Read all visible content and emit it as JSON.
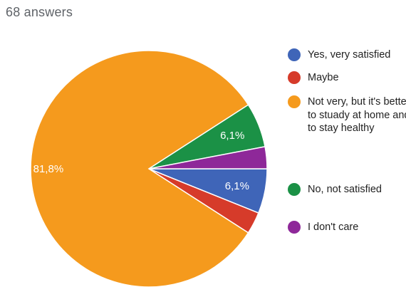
{
  "response_count": "68 answers",
  "chart_data": {
    "type": "pie",
    "slices": [
      {
        "label": "Yes, very satisfied",
        "value": 6.1,
        "display": "6,1%",
        "color": "#3f65b8"
      },
      {
        "label": "Maybe",
        "value": 3.0,
        "display": "",
        "color": "#d63b2a"
      },
      {
        "label": "Not very, but it's better to stuady at home and to stay healthy",
        "value": 81.8,
        "display": "81,8%",
        "color": "#f59a1d"
      },
      {
        "label": "No, not satisfied",
        "value": 6.1,
        "display": "6,1%",
        "color": "#1b9146"
      },
      {
        "label": "I don't care",
        "value": 3.0,
        "display": "",
        "color": "#8e2899"
      }
    ],
    "legend_position": "right"
  }
}
